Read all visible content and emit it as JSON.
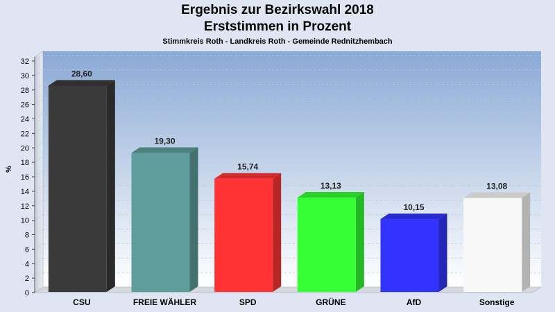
{
  "chart_data": {
    "type": "bar",
    "title": "Ergebnis zur Bezirkswahl 2018",
    "subtitle": "Erststimmen in Prozent",
    "caption": "Stimmkreis Roth - Landkreis Roth - Gemeinde Rednitzhembach",
    "ylabel": "%",
    "ylim": [
      0,
      32
    ],
    "yticks": [
      0,
      2,
      4,
      6,
      8,
      10,
      12,
      14,
      16,
      18,
      20,
      22,
      24,
      26,
      28,
      30,
      32
    ],
    "categories": [
      "CSU",
      "FREIE WÄHLER",
      "SPD",
      "GRÜNE",
      "AfD",
      "Sonstige"
    ],
    "values": [
      28.6,
      19.3,
      15.74,
      13.13,
      10.15,
      13.08
    ],
    "value_labels": [
      "28,60",
      "19,30",
      "15,74",
      "13,13",
      "10,15",
      "13,08"
    ],
    "colors": [
      "#3a3a3a",
      "#5f9c9c",
      "#ff3333",
      "#33ff33",
      "#3333ff",
      "#f8f8f8"
    ],
    "grid": true
  }
}
